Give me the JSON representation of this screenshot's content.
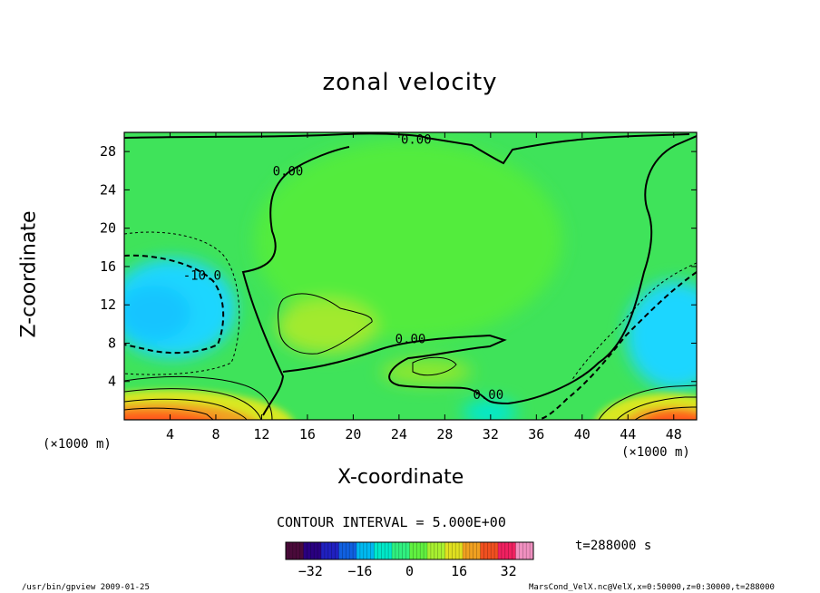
{
  "chart_data": {
    "type": "heatmap",
    "title": "zonal velocity",
    "xlabel": "X-coordinate",
    "ylabel": "Z-coordinate",
    "x_units": "(×1000 m)",
    "y_units": "(×1000 m)",
    "xlim": [
      0,
      50
    ],
    "ylim": [
      0,
      30
    ],
    "x_ticks": [
      4,
      8,
      12,
      16,
      20,
      24,
      28,
      32,
      36,
      40,
      44,
      48
    ],
    "y_ticks": [
      4,
      8,
      12,
      16,
      20,
      24,
      28
    ],
    "contour_interval_text": "CONTOUR INTERVAL = 5.000E+00",
    "contour_labels": [
      {
        "text": "0.00",
        "x": 25.5,
        "y": 28.8
      },
      {
        "text": "0.00",
        "x": 14.3,
        "y": 25.5
      },
      {
        "text": "-10.0",
        "x": 6.8,
        "y": 14.6
      },
      {
        "text": "0.00",
        "x": 25.0,
        "y": 8.0
      },
      {
        "text": "0.00",
        "x": 31.8,
        "y": 2.2
      }
    ],
    "time_label": "t=288000 s",
    "colorbar": {
      "range": [
        -40,
        40
      ],
      "tick_values": [
        -32,
        -16,
        0,
        16,
        32
      ],
      "tick_labels": [
        "−32",
        "−16",
        "0",
        "16",
        "32"
      ],
      "colors": [
        "#4a0a3a",
        "#2a0080",
        "#2020c0",
        "#1060e0",
        "#00b8f0",
        "#00e8c8",
        "#30f080",
        "#60f040",
        "#a8f030",
        "#e0e020",
        "#f0a020",
        "#f05020",
        "#f02060",
        "#f090c0"
      ]
    },
    "field_colors": {
      "background": "#3fe35a",
      "upper_interior": "#52ec3c",
      "core": "#a2ea2f",
      "westerly_jet": "#1ad6ff",
      "surface_max": "#ff5a1a",
      "dip": "#00e8d0"
    }
  },
  "footer": {
    "left": "/usr/bin/gpview  2009-01-25",
    "right": "MarsCond_VelX.nc@VelX,x=0:50000,z=0:30000,t=288000"
  }
}
